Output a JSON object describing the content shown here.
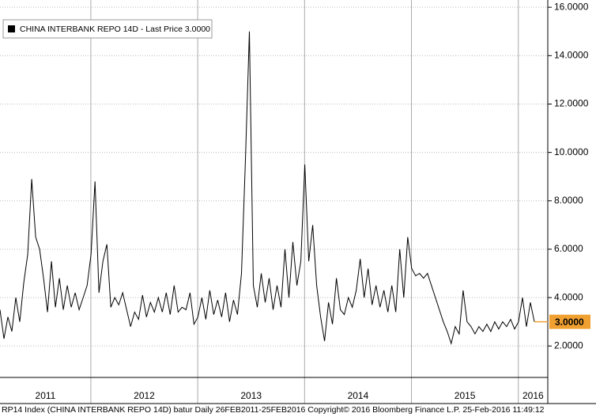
{
  "chart_data": {
    "type": "line",
    "legend": "CHINA INTERBANK REPO 14D - Last Price 3.0000",
    "footer": "RP14 Index (CHINA INTERBANK REPO 14D) batur  Daily 26FEB2011-25FEB2016  Copyright© 2016 Bloomberg Finance L.P.   25-Feb-2016 11:49:12",
    "series": [
      {
        "name": "CHINA INTERBANK REPO 14D",
        "color": "#000000",
        "values": [
          3.5,
          2.3,
          3.2,
          2.6,
          4.0,
          3.0,
          4.6,
          5.8,
          8.9,
          6.5,
          6.0,
          4.8,
          3.4,
          5.5,
          3.6,
          4.8,
          3.5,
          4.5,
          3.6,
          4.2,
          3.5,
          4.0,
          4.5,
          5.8,
          8.8,
          4.2,
          5.5,
          6.2,
          3.6,
          4.0,
          3.7,
          4.2,
          3.5,
          2.8,
          3.4,
          3.1,
          4.1,
          3.2,
          3.8,
          3.4,
          4.0,
          3.4,
          4.2,
          3.3,
          4.5,
          3.4,
          3.6,
          3.5,
          4.2,
          2.9,
          3.2,
          4.0,
          3.1,
          4.3,
          3.3,
          3.9,
          3.2,
          4.2,
          3.0,
          3.9,
          3.3,
          5.0,
          9.7,
          15.0,
          4.5,
          3.6,
          5.0,
          3.8,
          4.8,
          3.5,
          4.5,
          3.6,
          6.0,
          4.0,
          6.3,
          4.5,
          5.5,
          9.5,
          5.5,
          7.0,
          4.5,
          3.2,
          2.2,
          3.8,
          2.9,
          4.8,
          3.5,
          3.3,
          4.0,
          3.6,
          4.3,
          5.6,
          4.0,
          5.2,
          3.7,
          4.5,
          3.6,
          4.3,
          3.4,
          4.5,
          3.4,
          6.0,
          4.0,
          6.5,
          5.2,
          4.9,
          5.0,
          4.8,
          5.0,
          4.5,
          4.0,
          3.5,
          3.0,
          2.6,
          2.1,
          2.8,
          2.5,
          4.3,
          3.0,
          2.8,
          2.5,
          2.8,
          2.6,
          2.9,
          2.6,
          3.0,
          2.7,
          3.0,
          2.8,
          3.1,
          2.7,
          3.0,
          4.0,
          2.8,
          3.8,
          3.0
        ]
      }
    ],
    "last_price": {
      "value": 3,
      "label": "3.0000",
      "color": "#f0a030"
    },
    "xlim": [
      2011.15,
      2016.15
    ],
    "xticks": [
      {
        "value": 2011,
        "label": "2011"
      },
      {
        "value": 2012,
        "label": "2012"
      },
      {
        "value": 2013,
        "label": "2013"
      },
      {
        "value": 2014,
        "label": "2014"
      },
      {
        "value": 2015,
        "label": "2015"
      },
      {
        "value": 2016,
        "label": "2016"
      }
    ],
    "ylim": [
      0.7,
      16.3
    ],
    "yticks": [
      {
        "value": 2,
        "label": "2.0000"
      },
      {
        "value": 4,
        "label": "4.0000"
      },
      {
        "value": 6,
        "label": "6.0000"
      },
      {
        "value": 8,
        "label": "8.0000"
      },
      {
        "value": 10,
        "label": "10.0000"
      },
      {
        "value": 12,
        "label": "12.0000"
      },
      {
        "value": 14,
        "label": "14.0000"
      },
      {
        "value": 16,
        "label": "16.0000"
      }
    ],
    "grid": true
  }
}
